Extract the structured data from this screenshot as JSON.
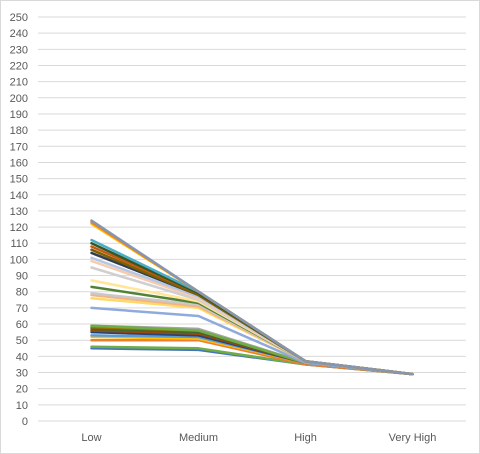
{
  "chart_data": {
    "type": "line",
    "title": "",
    "xlabel": "",
    "ylabel": "",
    "categories": [
      "Low",
      "Medium",
      "High",
      "Very High"
    ],
    "ylim": [
      0,
      250
    ],
    "ytick_step": 10,
    "grid": "horizontal",
    "legend": "none",
    "series": [
      {
        "color": "#4472C4",
        "values": [
          45,
          44,
          35,
          29
        ]
      },
      {
        "color": "#70AD47",
        "values": [
          46,
          45,
          35,
          29
        ]
      },
      {
        "color": "#ED7D31",
        "values": [
          50,
          50,
          35,
          29
        ]
      },
      {
        "color": "#FFC000",
        "values": [
          52,
          51,
          36,
          29
        ]
      },
      {
        "color": "#5B9BD5",
        "values": [
          53,
          52,
          36,
          29
        ]
      },
      {
        "color": "#264478",
        "values": [
          55,
          53,
          36,
          29
        ]
      },
      {
        "color": "#9E480E",
        "values": [
          56,
          54,
          36,
          29
        ]
      },
      {
        "color": "#43682B",
        "values": [
          57,
          55,
          36,
          29
        ]
      },
      {
        "color": "#997300",
        "values": [
          58,
          56,
          36,
          29
        ]
      },
      {
        "color": "#A5A5A5",
        "values": [
          59,
          57,
          36,
          29
        ]
      },
      {
        "color": "#70AD47",
        "values": [
          59,
          56,
          36,
          29
        ]
      },
      {
        "color": "#8FAADC",
        "values": [
          70,
          65,
          36,
          29
        ]
      },
      {
        "color": "#FFD966",
        "values": [
          76,
          70,
          37,
          29
        ]
      },
      {
        "color": "#F4B183",
        "values": [
          78,
          71,
          37,
          29
        ]
      },
      {
        "color": "#C9C9C9",
        "values": [
          79,
          72,
          37,
          29
        ]
      },
      {
        "color": "#548235",
        "values": [
          83,
          73,
          37,
          29
        ]
      },
      {
        "color": "#FFE699",
        "values": [
          87,
          74,
          37,
          29
        ]
      },
      {
        "color": "#D0CECE",
        "values": [
          95,
          75,
          37,
          29
        ]
      },
      {
        "color": "#F8CBAD",
        "values": [
          99,
          76,
          37,
          29
        ]
      },
      {
        "color": "#B4C7E7",
        "values": [
          101,
          77,
          37,
          29
        ]
      },
      {
        "color": "#333F50",
        "values": [
          104,
          78,
          37,
          29
        ]
      },
      {
        "color": "#7F6000",
        "values": [
          106,
          78,
          37,
          29
        ]
      },
      {
        "color": "#C55A11",
        "values": [
          108,
          79,
          37,
          29
        ]
      },
      {
        "color": "#375623",
        "values": [
          110,
          79,
          37,
          29
        ]
      },
      {
        "color": "#4BACC6",
        "values": [
          112,
          80,
          37,
          29
        ]
      },
      {
        "color": "#FFC000",
        "values": [
          122,
          80,
          37,
          29
        ]
      },
      {
        "color": "#ED7D31",
        "values": [
          123,
          80,
          37,
          29
        ]
      },
      {
        "color": "#8496B0",
        "values": [
          124,
          80,
          37,
          29
        ]
      }
    ]
  }
}
